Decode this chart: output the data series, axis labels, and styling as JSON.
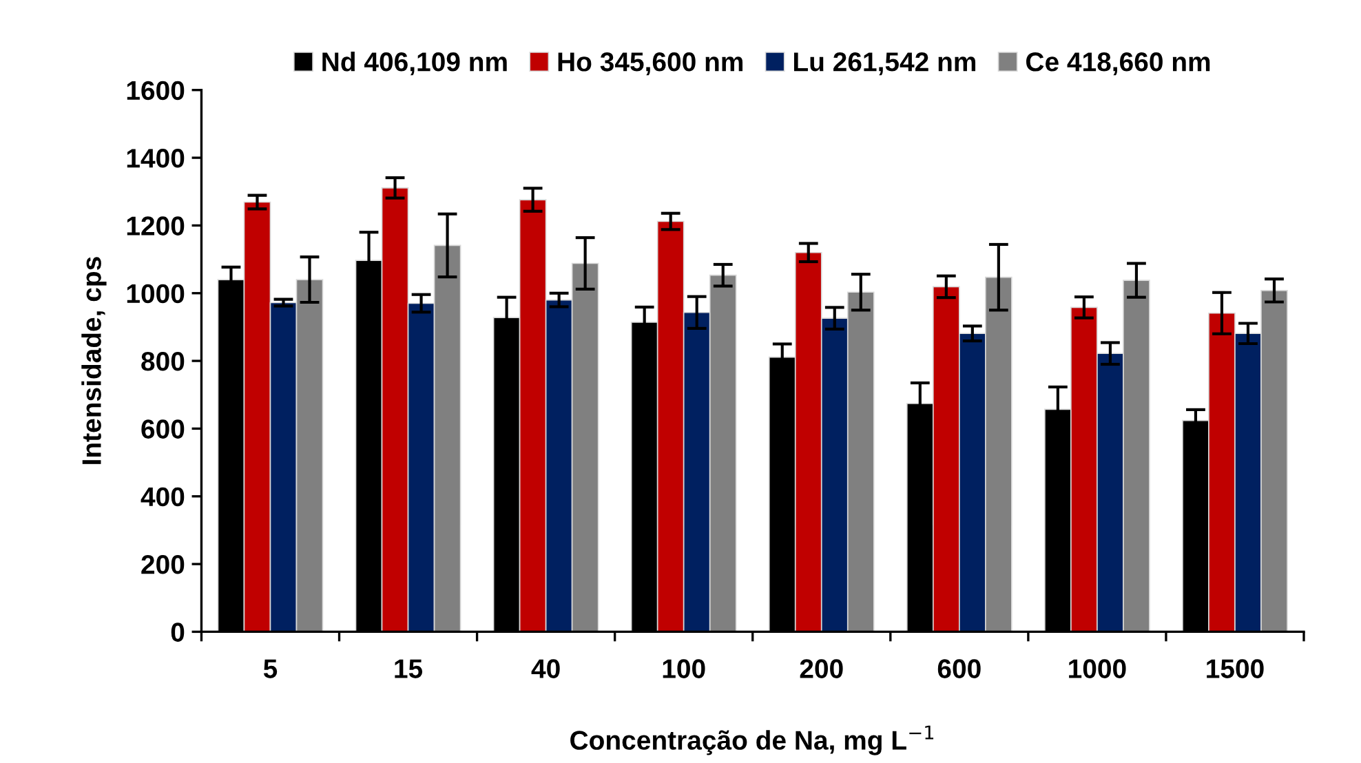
{
  "chart_data": {
    "type": "bar",
    "xlabel": "Concentração de Na, mg L$^{−1}$",
    "ylabel": "Intensidade, cps",
    "categories": [
      "5",
      "15",
      "40",
      "100",
      "200",
      "600",
      "1000",
      "1500"
    ],
    "ylim": [
      0,
      1600
    ],
    "yticks": [
      0,
      200,
      400,
      600,
      800,
      1000,
      1200,
      1400,
      1600
    ],
    "grid": false,
    "legend": "top",
    "series": [
      {
        "name": "Nd 406,109 nm",
        "color": "#000000",
        "values": [
          1040,
          1097,
          928,
          914,
          811,
          674,
          657,
          624
        ],
        "errors": [
          37,
          83,
          60,
          45,
          39,
          61,
          66,
          32
        ]
      },
      {
        "name": "Ho 345,600 nm",
        "color": "#c00000",
        "values": [
          1269,
          1311,
          1276,
          1212,
          1120,
          1019,
          958,
          941
        ],
        "errors": [
          20,
          30,
          34,
          24,
          27,
          32,
          31,
          61
        ]
      },
      {
        "name": "Lu 261,542 nm",
        "color": "#002060",
        "values": [
          972,
          970,
          980,
          943,
          926,
          881,
          822,
          881
        ],
        "errors": [
          10,
          26,
          20,
          47,
          32,
          22,
          32,
          30
        ]
      },
      {
        "name": "Ce 418,660 nm",
        "color": "#808080",
        "values": [
          1040,
          1141,
          1088,
          1053,
          1003,
          1047,
          1038,
          1008
        ],
        "errors": [
          67,
          93,
          76,
          32,
          53,
          97,
          50,
          34
        ]
      }
    ]
  }
}
